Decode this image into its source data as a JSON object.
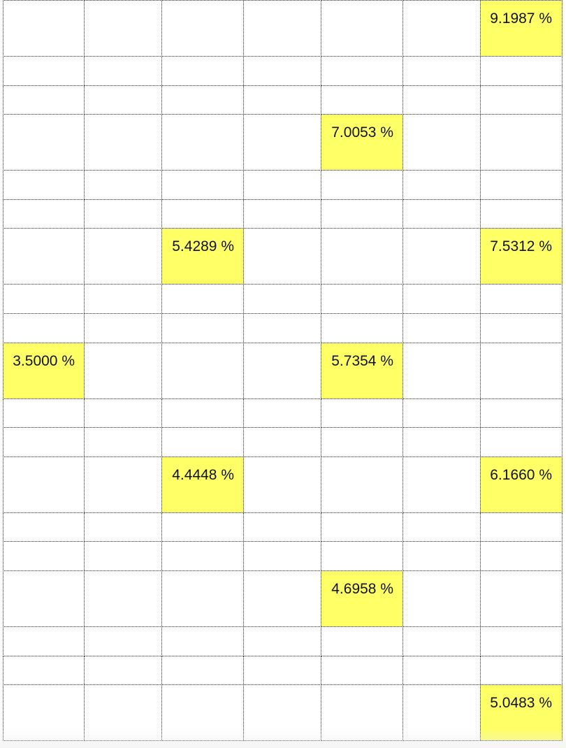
{
  "table": {
    "highlight_color": "#ffff66",
    "rows": [
      {
        "tall": true,
        "cells": [
          "",
          "",
          "",
          "",
          "",
          "",
          "9.1987 %"
        ]
      },
      {
        "tall": false,
        "cells": [
          "",
          "",
          "",
          "",
          "",
          "",
          ""
        ]
      },
      {
        "tall": false,
        "cells": [
          "",
          "",
          "",
          "",
          "",
          "",
          ""
        ]
      },
      {
        "tall": true,
        "cells": [
          "",
          "",
          "",
          "",
          "7.0053 %",
          "",
          ""
        ]
      },
      {
        "tall": false,
        "cells": [
          "",
          "",
          "",
          "",
          "",
          "",
          ""
        ]
      },
      {
        "tall": false,
        "cells": [
          "",
          "",
          "",
          "",
          "",
          "",
          ""
        ]
      },
      {
        "tall": true,
        "cells": [
          "",
          "",
          "5.4289 %",
          "",
          "",
          "",
          "7.5312 %"
        ]
      },
      {
        "tall": false,
        "cells": [
          "",
          "",
          "",
          "",
          "",
          "",
          ""
        ]
      },
      {
        "tall": false,
        "cells": [
          "",
          "",
          "",
          "",
          "",
          "",
          ""
        ]
      },
      {
        "tall": true,
        "cells": [
          "3.5000 %",
          "",
          "",
          "",
          "5.7354 %",
          "",
          ""
        ]
      },
      {
        "tall": false,
        "cells": [
          "",
          "",
          "",
          "",
          "",
          "",
          ""
        ]
      },
      {
        "tall": false,
        "cells": [
          "",
          "",
          "",
          "",
          "",
          "",
          ""
        ]
      },
      {
        "tall": true,
        "cells": [
          "",
          "",
          "4.4448 %",
          "",
          "",
          "",
          "6.1660 %"
        ]
      },
      {
        "tall": false,
        "cells": [
          "",
          "",
          "",
          "",
          "",
          "",
          ""
        ]
      },
      {
        "tall": false,
        "cells": [
          "",
          "",
          "",
          "",
          "",
          "",
          ""
        ]
      },
      {
        "tall": true,
        "cells": [
          "",
          "",
          "",
          "",
          "4.6958 %",
          "",
          ""
        ]
      },
      {
        "tall": false,
        "cells": [
          "",
          "",
          "",
          "",
          "",
          "",
          ""
        ]
      },
      {
        "tall": false,
        "cells": [
          "",
          "",
          "",
          "",
          "",
          "",
          ""
        ]
      },
      {
        "tall": true,
        "cells": [
          "",
          "",
          "",
          "",
          "",
          "",
          "5.0483 %"
        ]
      }
    ]
  }
}
